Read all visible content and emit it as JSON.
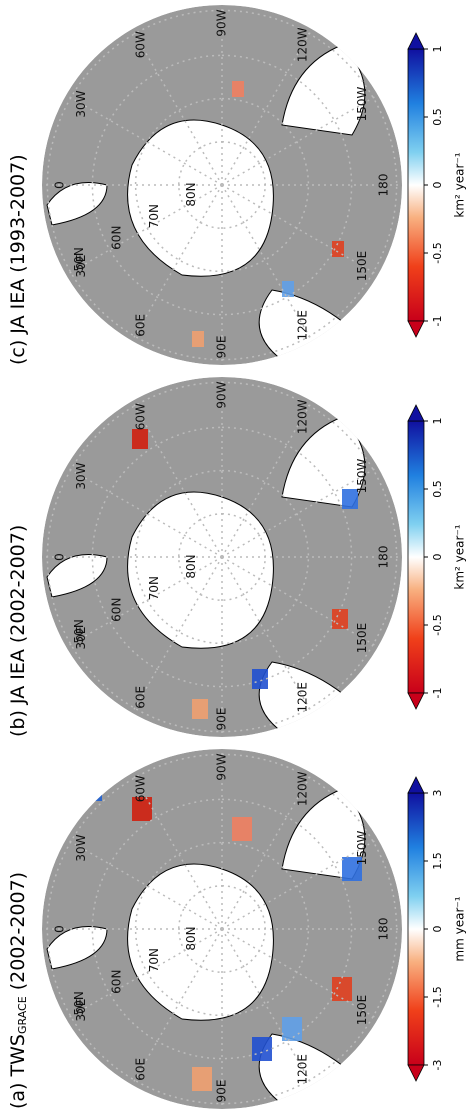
{
  "panels": [
    {
      "title": {
        "prefix": "(a) TWS",
        "subscript": "GRACE",
        "suffix": " (2002-2007)"
      },
      "colorbar": {
        "clim": [
          -3,
          3
        ],
        "ticks": [
          -3,
          -1.5,
          0,
          1.5,
          3
        ],
        "unit": "mm year⁻¹"
      }
    },
    {
      "title": {
        "prefix": "(b) JA IEA (2002-2007)"
      },
      "colorbar": {
        "clim": [
          -1,
          1
        ],
        "ticks": [
          -1,
          -0.5,
          0,
          0.5,
          1
        ],
        "unit": "km² year⁻¹"
      }
    },
    {
      "title": {
        "prefix": "(c) JA IEA (1993-2007)"
      },
      "colorbar": {
        "clim": [
          -1,
          1
        ],
        "ticks": [
          -1,
          -0.5,
          0,
          0.5,
          1
        ],
        "unit": "km² year⁻¹"
      }
    }
  ],
  "longitudes": [
    "0",
    "30W",
    "60W",
    "90W",
    "120W",
    "150W",
    "180",
    "150E",
    "120E",
    "90E",
    "60E",
    "30E"
  ],
  "latitudes": [
    "50N",
    "60N",
    "70N",
    "80N"
  ]
}
